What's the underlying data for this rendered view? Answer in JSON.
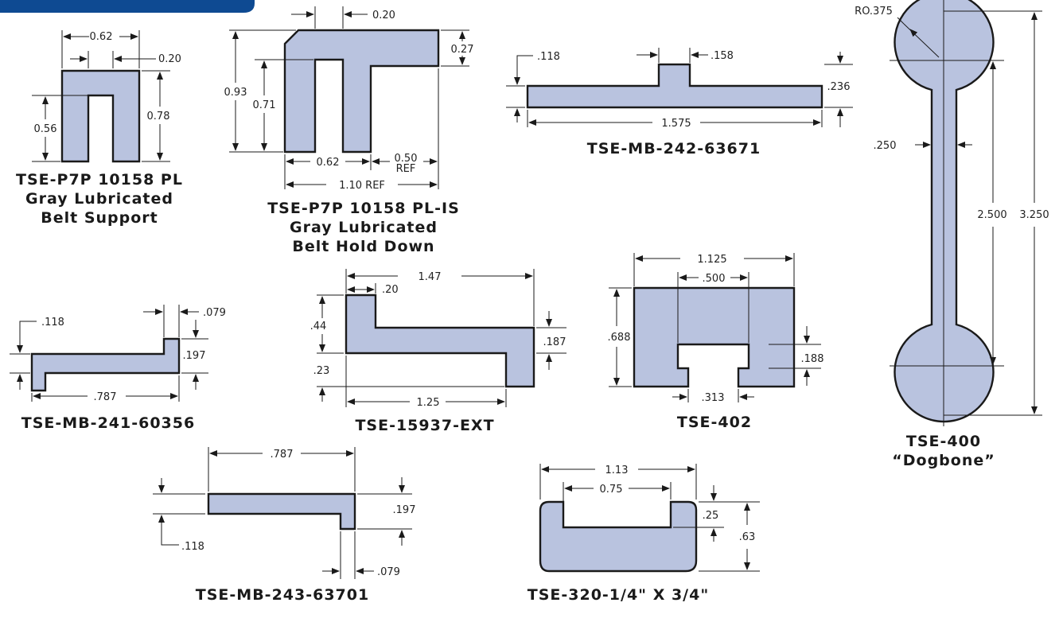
{
  "colors": {
    "profile_fill": "#b9c3df",
    "banner": "#0e4a92",
    "outline": "#1a1a1a"
  },
  "parts": {
    "p7p": {
      "title1": "TSE-P7P 10158 PL",
      "title2": "Gray Lubricated",
      "title3": "Belt Support",
      "d_width": "0.62",
      "d_slot": "0.20",
      "d_inner": "0.56",
      "d_height": "0.78"
    },
    "p7pis": {
      "title1": "TSE-P7P 10158 PL-IS",
      "title2": "Gray Lubricated",
      "title3": "Belt Hold Down",
      "d_top": "0.20",
      "d_flange": "0.27",
      "d_height": "0.93",
      "d_inner": "0.71",
      "d_width": "0.62",
      "d_ref": "0.50",
      "d_ref_label": "REF",
      "d_total": "1.10 REF"
    },
    "mb242": {
      "title": "TSE-MB-242-63671",
      "d_left": ".118",
      "d_tab": ".158",
      "d_thick": ".236",
      "d_len": "1.575"
    },
    "dogbone": {
      "title1": "TSE-400",
      "title2": "“Dogbone”",
      "d_radius": "RO.375",
      "d_neck": ".250",
      "d_center": "2.500",
      "d_total": "3.250"
    },
    "mb241": {
      "title": "TSE-MB-241-60356",
      "d_left": ".118",
      "d_step": ".079",
      "d_thick": ".197",
      "d_len": ".787"
    },
    "ext": {
      "title": "TSE-15937-EXT",
      "d_total": "1.47",
      "d_post": ".20",
      "d_post_h": ".44",
      "d_right": ".187",
      "d_base": ".23",
      "d_lower": "1.25"
    },
    "t402": {
      "title": "TSE-402",
      "d_total": "1.125",
      "d_slot": ".500",
      "d_height": ".688",
      "d_slot_h": ".188",
      "d_open": ".313"
    },
    "mb243": {
      "title": "TSE-MB-243-63701",
      "d_len": ".787",
      "d_thick": ".197",
      "d_left": ".118",
      "d_step": ".079"
    },
    "t320": {
      "title": "TSE-320-1/4\" X 3/4\"",
      "d_total": "1.13",
      "d_inner": "0.75",
      "d_depth": ".25",
      "d_height": ".63"
    }
  }
}
